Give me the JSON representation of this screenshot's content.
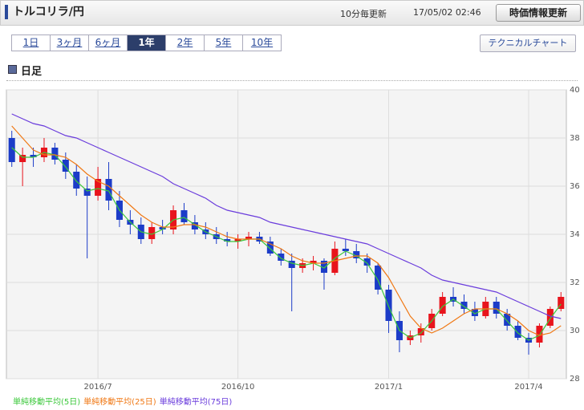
{
  "header": {
    "title": "トルコリラ/円",
    "update_interval": "10分毎更新",
    "timestamp": "17/05/02 02:46",
    "refresh_button": "時価情報更新"
  },
  "tabs": {
    "items": [
      "1日",
      "3ヶ月",
      "6ヶ月",
      "1年",
      "2年",
      "5年",
      "10年"
    ],
    "active": 3,
    "technical_button": "テクニカルチャート"
  },
  "section_title": "日足",
  "chart_data": {
    "type": "candlestick",
    "up_color": "#e8141c",
    "down_color": "#1c3cc8",
    "categories": [
      null,
      null,
      null,
      null,
      null,
      null,
      null,
      null,
      "2016/7",
      null,
      null,
      null,
      null,
      null,
      null,
      null,
      null,
      null,
      null,
      null,
      null,
      "2016/10",
      null,
      null,
      null,
      null,
      null,
      null,
      null,
      null,
      null,
      null,
      null,
      null,
      null,
      "2017/1",
      null,
      null,
      null,
      null,
      null,
      null,
      null,
      null,
      null,
      null,
      null,
      null,
      "2017/4",
      null,
      null,
      null
    ],
    "open": [
      38.0,
      37.0,
      37.3,
      37.2,
      37.6,
      37.1,
      36.6,
      35.9,
      35.6,
      36.3,
      35.4,
      34.6,
      34.4,
      33.8,
      34.3,
      34.2,
      35.0,
      34.5,
      34.2,
      34.0,
      33.8,
      33.7,
      33.8,
      33.9,
      33.7,
      33.2,
      32.9,
      32.6,
      32.8,
      32.9,
      32.4,
      33.4,
      33.3,
      33.0,
      32.7,
      31.7,
      30.4,
      29.6,
      29.8,
      30.1,
      30.7,
      31.4,
      31.2,
      30.9,
      30.6,
      31.2,
      30.7,
      30.2,
      29.7,
      29.5,
      30.2,
      30.9
    ],
    "high": [
      38.3,
      37.6,
      37.6,
      38.0,
      37.8,
      37.4,
      36.9,
      36.4,
      36.8,
      37.0,
      35.8,
      35.0,
      34.7,
      34.5,
      34.6,
      35.2,
      35.3,
      34.8,
      34.5,
      34.3,
      34.1,
      34.0,
      34.1,
      34.1,
      33.9,
      33.4,
      33.2,
      33.0,
      33.1,
      33.0,
      33.7,
      33.8,
      33.6,
      33.2,
      32.8,
      31.9,
      30.8,
      30.0,
      30.3,
      30.9,
      31.6,
      31.8,
      31.5,
      31.2,
      31.4,
      31.4,
      30.9,
      30.4,
      29.9,
      30.3,
      31.0,
      31.6
    ],
    "low": [
      36.8,
      36.0,
      36.8,
      37.0,
      36.9,
      36.3,
      35.6,
      33.0,
      35.4,
      35.0,
      34.3,
      34.0,
      33.6,
      33.6,
      34.0,
      34.0,
      34.4,
      34.0,
      33.8,
      33.6,
      33.5,
      33.4,
      33.5,
      33.6,
      33.1,
      32.7,
      30.8,
      32.4,
      32.5,
      31.7,
      32.3,
      33.1,
      32.8,
      32.4,
      31.5,
      29.9,
      29.1,
      29.4,
      29.5,
      30.0,
      30.6,
      31.0,
      30.7,
      30.4,
      30.5,
      30.5,
      30.0,
      29.6,
      29.0,
      29.3,
      30.1,
      30.8
    ],
    "close": [
      37.0,
      37.3,
      37.2,
      37.6,
      37.1,
      36.6,
      35.9,
      35.6,
      36.3,
      35.4,
      34.6,
      34.4,
      33.8,
      34.3,
      34.2,
      35.0,
      34.5,
      34.2,
      34.0,
      33.8,
      33.7,
      33.8,
      33.9,
      33.7,
      33.2,
      32.9,
      32.6,
      32.8,
      32.9,
      32.4,
      33.4,
      33.3,
      33.0,
      32.7,
      31.7,
      30.4,
      29.6,
      29.8,
      30.1,
      30.7,
      31.4,
      31.2,
      30.9,
      30.6,
      31.2,
      30.7,
      30.2,
      29.7,
      29.5,
      30.2,
      30.9,
      31.4
    ],
    "series": [
      {
        "name": "単純移動平均(5日)",
        "color": "#3cc83c",
        "values": [
          37.6,
          37.2,
          37.2,
          37.4,
          37.3,
          36.8,
          36.2,
          35.8,
          35.9,
          35.8,
          35.0,
          34.5,
          34.1,
          34.0,
          34.2,
          34.6,
          34.7,
          34.4,
          34.1,
          33.9,
          33.7,
          33.7,
          33.8,
          33.8,
          33.4,
          33.0,
          32.8,
          32.7,
          32.8,
          32.6,
          33.0,
          33.3,
          33.1,
          32.8,
          32.1,
          31.0,
          30.0,
          29.7,
          29.9,
          30.4,
          31.0,
          31.3,
          31.0,
          30.7,
          30.9,
          30.9,
          30.4,
          29.9,
          29.6,
          29.8,
          30.5,
          31.1
        ]
      },
      {
        "name": "単純移動平均(25日)",
        "color": "#f07814",
        "values": [
          38.5,
          38.0,
          37.5,
          37.3,
          37.3,
          37.2,
          36.9,
          36.5,
          36.2,
          36.0,
          35.6,
          35.2,
          34.8,
          34.5,
          34.3,
          34.3,
          34.4,
          34.4,
          34.3,
          34.1,
          33.9,
          33.8,
          33.8,
          33.8,
          33.6,
          33.4,
          33.1,
          32.9,
          32.8,
          32.8,
          32.9,
          33.0,
          33.1,
          33.1,
          32.8,
          32.2,
          31.4,
          30.6,
          30.1,
          29.9,
          30.1,
          30.4,
          30.7,
          30.9,
          30.9,
          30.9,
          30.7,
          30.4,
          30.0,
          29.8,
          29.9,
          30.2
        ]
      },
      {
        "name": "単純移動平均(75日)",
        "color": "#6a3cdc",
        "values": [
          39.0,
          38.8,
          38.6,
          38.5,
          38.3,
          38.1,
          38.0,
          37.8,
          37.6,
          37.4,
          37.2,
          37.0,
          36.8,
          36.6,
          36.4,
          36.1,
          35.9,
          35.7,
          35.5,
          35.2,
          35.0,
          34.9,
          34.8,
          34.7,
          34.5,
          34.4,
          34.3,
          34.2,
          34.1,
          34.0,
          33.9,
          33.8,
          33.7,
          33.6,
          33.4,
          33.2,
          33.0,
          32.8,
          32.6,
          32.3,
          32.1,
          32.0,
          31.9,
          31.8,
          31.7,
          31.6,
          31.4,
          31.2,
          31.0,
          30.8,
          30.6,
          30.5
        ]
      }
    ],
    "ylim": [
      28,
      40
    ],
    "yticks": [
      28,
      30,
      32,
      34,
      36,
      38,
      40
    ],
    "grid": true
  }
}
